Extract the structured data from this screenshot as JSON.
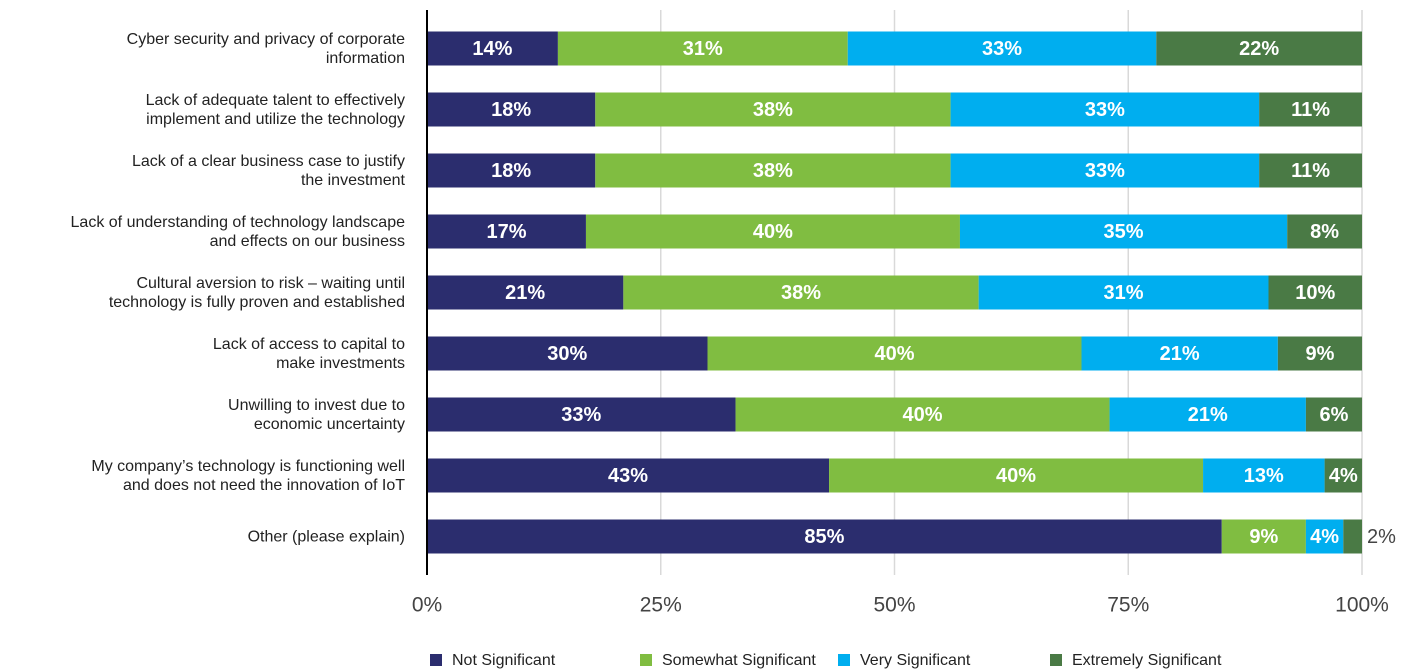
{
  "chart_data": {
    "type": "stacked_barh",
    "categories": [
      "Cyber security and privacy of corporate\ninformation",
      "Lack of adequate talent to effectively\nimplement and utilize the technology",
      "Lack of a clear business case to justify\nthe investment",
      "Lack of understanding of technology landscape\nand effects on our business",
      "Cultural aversion to risk – waiting until\ntechnology is fully proven and established",
      "Lack of access to capital to\nmake investments",
      "Unwilling to invest due to\neconomic uncertainty",
      "My company’s technology is functioning well\nand does not need the innovation of IoT",
      "Other (please explain)"
    ],
    "series": [
      {
        "name": "Not Significant",
        "color": "#2b2d6e",
        "values": [
          14,
          18,
          18,
          17,
          21,
          30,
          33,
          43,
          85
        ],
        "value_labels": [
          "14%",
          "18%",
          "18%",
          "17%",
          "21%",
          "30%",
          "33%",
          "43%",
          "85%"
        ]
      },
      {
        "name": "Somewhat Significant",
        "color": "#80bd41",
        "values": [
          31,
          38,
          38,
          40,
          38,
          40,
          40,
          40,
          9
        ],
        "value_labels": [
          "31%",
          "38%",
          "38%",
          "40%",
          "38%",
          "40%",
          "40%",
          "40%",
          "9%"
        ]
      },
      {
        "name": "Very Significant",
        "color": "#00aeef",
        "values": [
          33,
          33,
          33,
          35,
          31,
          21,
          21,
          13,
          4
        ],
        "value_labels": [
          "33%",
          "33%",
          "33%",
          "35%",
          "31%",
          "21%",
          "21%",
          "13%",
          "4%"
        ]
      },
      {
        "name": "Extremely Significant",
        "color": "#4a7a45",
        "values": [
          22,
          11,
          11,
          8,
          10,
          9,
          6,
          4,
          2
        ],
        "value_labels": [
          "22%",
          "11%",
          "11%",
          "8%",
          "10%",
          "9%",
          "6%",
          "4%",
          "2%"
        ]
      }
    ],
    "xlim": [
      0,
      100
    ],
    "xticks": [
      {
        "value": 0,
        "label": "0%"
      },
      {
        "value": 25,
        "label": "25%"
      },
      {
        "value": 50,
        "label": "50%"
      },
      {
        "value": 75,
        "label": "75%"
      },
      {
        "value": 100,
        "label": "100%"
      }
    ],
    "grid": true,
    "legend": "bottom"
  }
}
